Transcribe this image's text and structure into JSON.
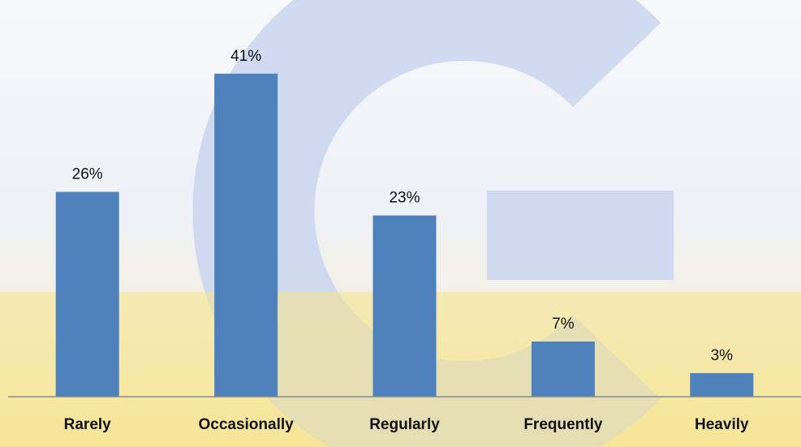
{
  "chart_data": {
    "type": "bar",
    "categories": [
      "Rarely",
      "Occasionally",
      "Regularly",
      "Frequently",
      "Heavily"
    ],
    "values": [
      26,
      41,
      23,
      7,
      3
    ],
    "value_labels": [
      "26%",
      "41%",
      "23%",
      "7%",
      "3%"
    ],
    "title": "",
    "xlabel": "",
    "ylabel": "",
    "ylim": [
      0,
      45
    ],
    "grid": false,
    "legend": "none",
    "colors": {
      "bar": "#4f81bd",
      "axis": "#8a8a8a"
    }
  }
}
